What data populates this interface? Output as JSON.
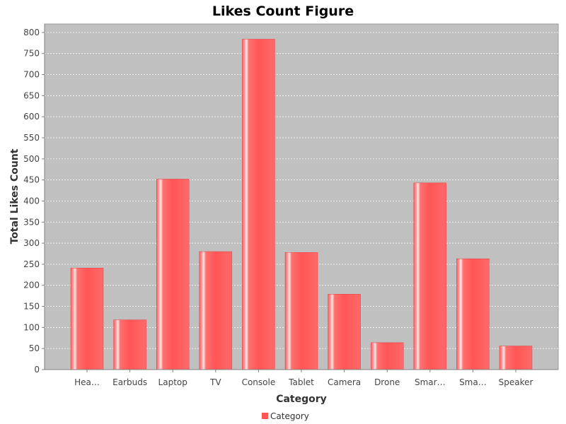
{
  "chart_data": {
    "type": "bar",
    "title": "Likes Count Figure",
    "xlabel": "Category",
    "ylabel": "Total Likes Count",
    "categories": [
      "Hea…",
      "Earbuds",
      "Laptop",
      "TV",
      "Console",
      "Tablet",
      "Camera",
      "Drone",
      "Smar…",
      "Sma…",
      "Speaker"
    ],
    "series": [
      {
        "name": "Category",
        "values": [
          241,
          118,
          452,
          280,
          784,
          278,
          179,
          64,
          443,
          263,
          56
        ]
      }
    ],
    "ylim": [
      0,
      820
    ],
    "yticks": [
      "0",
      "50",
      "100",
      "150",
      "200",
      "250",
      "300",
      "350",
      "400",
      "450",
      "500",
      "550",
      "600",
      "650",
      "700",
      "750",
      "800"
    ],
    "grid": true,
    "legend_position": "bottom-center",
    "colors": {
      "bar": "#ff5555",
      "bar_highlight": "#ffd0d0",
      "plot_background": "#c0c0c0",
      "gridline": "#ffffff"
    }
  }
}
